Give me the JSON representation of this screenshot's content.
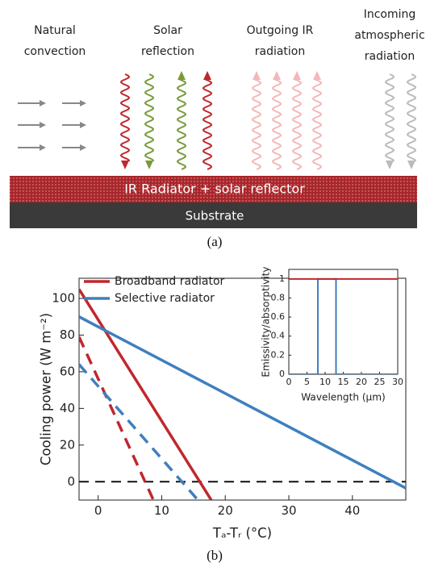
{
  "diagram": {
    "labels": [
      [
        "Natural",
        "convection"
      ],
      [
        "Solar",
        "reflection"
      ],
      [
        "Outgoing IR",
        "radiation"
      ],
      [
        "Incoming",
        "atmospheric",
        "radiation"
      ]
    ],
    "layer": "IR Radiator + solar reflector",
    "substrate": "Substrate",
    "caption": "(a)"
  },
  "chart_data": [
    {
      "type": "line",
      "xlabel": "Tₐ-Tᵣ (°C)",
      "ylabel": "Cooling power (W m⁻²)",
      "xlim": [
        -3,
        48.4
      ],
      "ylim": [
        -10,
        111
      ],
      "xticks": [
        0,
        10,
        20,
        30,
        40
      ],
      "yticks": [
        0,
        20,
        40,
        60,
        80,
        100
      ],
      "legend": "upper left",
      "hline": 0,
      "series": [
        {
          "name": "Broadband radiator",
          "color": "#c0272d",
          "dashed": false,
          "x": [
            -3,
            17.8
          ],
          "values": [
            105,
            -10
          ]
        },
        {
          "name": "Selective radiator",
          "color": "#3f7fbf",
          "dashed": false,
          "x": [
            -3,
            48.4
          ],
          "values": [
            90,
            -3.5
          ]
        },
        {
          "color": "#c0272d",
          "dashed": true,
          "x": [
            -3,
            8.7
          ],
          "values": [
            79,
            -10
          ]
        },
        {
          "color": "#3f7fbf",
          "dashed": true,
          "x": [
            -3,
            15.7
          ],
          "values": [
            64,
            -10
          ]
        }
      ]
    },
    {
      "type": "line",
      "xlabel": "Wavelength (μm)",
      "ylabel": "Emissivity/absorptivity",
      "xlim": [
        0,
        30
      ],
      "ylim": [
        0,
        1.1
      ],
      "xticks": [
        0,
        5,
        10,
        15,
        20,
        25,
        30
      ],
      "yticks": [
        0,
        0.2,
        0.4,
        0.6,
        0.8,
        1
      ],
      "series": [
        {
          "color": "#3f7fbf",
          "dashed": false,
          "x": [
            0,
            8,
            8,
            13,
            13,
            30
          ],
          "values": [
            0,
            0,
            1,
            1,
            0,
            0
          ]
        },
        {
          "color": "#c0272d",
          "dashed": false,
          "x": [
            0,
            30
          ],
          "values": [
            1,
            1
          ]
        }
      ]
    }
  ],
  "caption": "(b)"
}
